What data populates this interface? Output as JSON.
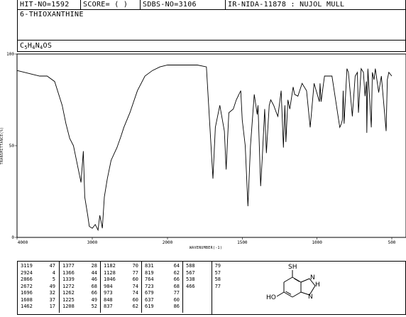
{
  "header": {
    "hit_no": "HIT-NO=1592",
    "score": "SCORE=  (   )",
    "sdbs_no": "SDBS-NO=3106",
    "ir_info": "IR-NIDA-11878 : NUJOL MULL"
  },
  "compound_name": "6-THIOXANTHINE",
  "formula": {
    "c": "C",
    "c_n": "5",
    "h": "H",
    "h_n": "4",
    "n": "N",
    "n_n": "4",
    "rest": "OS"
  },
  "chart_data": {
    "type": "line",
    "title": "",
    "xlabel": "WAVENUMBER(-1)",
    "ylabel": "TRANSMITTANCE(%)",
    "x_range": [
      4000,
      500
    ],
    "y_range": [
      0,
      100
    ],
    "x_ticks": [
      {
        "value": 4000,
        "label": "4000"
      },
      {
        "value": 3000,
        "label": "3000"
      },
      {
        "value": 2000,
        "label": "2000"
      },
      {
        "value": 1500,
        "label": "1500"
      },
      {
        "value": 1000,
        "label": "1000"
      },
      {
        "value": 500,
        "label": "500"
      }
    ],
    "y_ticks": [
      {
        "value": 0,
        "label": "0"
      },
      {
        "value": 50,
        "label": "50"
      },
      {
        "value": 100,
        "label": "100"
      }
    ],
    "x_axis_note": "x axis changes scale at 2000",
    "spectrum": [
      [
        4000,
        91
      ],
      [
        3900,
        90
      ],
      [
        3800,
        89
      ],
      [
        3700,
        88
      ],
      [
        3600,
        88
      ],
      [
        3500,
        85
      ],
      [
        3400,
        72
      ],
      [
        3350,
        62
      ],
      [
        3300,
        54
      ],
      [
        3250,
        50
      ],
      [
        3200,
        40
      ],
      [
        3150,
        30
      ],
      [
        3119,
        47
      ],
      [
        3100,
        22
      ],
      [
        3060,
        12
      ],
      [
        3040,
        6
      ],
      [
        3000,
        5
      ],
      [
        2960,
        7
      ],
      [
        2924,
        4
      ],
      [
        2900,
        12
      ],
      [
        2866,
        5
      ],
      [
        2840,
        22
      ],
      [
        2800,
        32
      ],
      [
        2750,
        42
      ],
      [
        2672,
        49
      ],
      [
        2620,
        55
      ],
      [
        2580,
        60
      ],
      [
        2500,
        68
      ],
      [
        2400,
        80
      ],
      [
        2300,
        88
      ],
      [
        2200,
        91
      ],
      [
        2100,
        93
      ],
      [
        2000,
        94
      ],
      [
        1900,
        94
      ],
      [
        1800,
        94
      ],
      [
        1740,
        93
      ],
      [
        1696,
        32
      ],
      [
        1680,
        60
      ],
      [
        1650,
        72
      ],
      [
        1620,
        58
      ],
      [
        1608,
        37
      ],
      [
        1590,
        68
      ],
      [
        1560,
        70
      ],
      [
        1540,
        75
      ],
      [
        1510,
        80
      ],
      [
        1500,
        64
      ],
      [
        1480,
        50
      ],
      [
        1462,
        17
      ],
      [
        1445,
        50
      ],
      [
        1420,
        78
      ],
      [
        1400,
        67
      ],
      [
        1395,
        72
      ],
      [
        1377,
        28
      ],
      [
        1366,
        44
      ],
      [
        1350,
        70
      ],
      [
        1339,
        46
      ],
      [
        1320,
        72
      ],
      [
        1310,
        75
      ],
      [
        1290,
        72
      ],
      [
        1272,
        68
      ],
      [
        1262,
        66
      ],
      [
        1240,
        80
      ],
      [
        1225,
        49
      ],
      [
        1215,
        72
      ],
      [
        1208,
        52
      ],
      [
        1195,
        75
      ],
      [
        1182,
        70
      ],
      [
        1160,
        82
      ],
      [
        1150,
        78
      ],
      [
        1128,
        77
      ],
      [
        1100,
        84
      ],
      [
        1070,
        80
      ],
      [
        1046,
        60
      ],
      [
        1020,
        84
      ],
      [
        984,
        74
      ],
      [
        980,
        84
      ],
      [
        973,
        74
      ],
      [
        950,
        88
      ],
      [
        900,
        88
      ],
      [
        848,
        60
      ],
      [
        837,
        62
      ],
      [
        831,
        64
      ],
      [
        825,
        80
      ],
      [
        819,
        62
      ],
      [
        800,
        92
      ],
      [
        790,
        90
      ],
      [
        764,
        66
      ],
      [
        745,
        88
      ],
      [
        730,
        90
      ],
      [
        723,
        68
      ],
      [
        705,
        92
      ],
      [
        690,
        90
      ],
      [
        679,
        77
      ],
      [
        670,
        85
      ],
      [
        667,
        57
      ],
      [
        660,
        92
      ],
      [
        637,
        60
      ],
      [
        630,
        90
      ],
      [
        619,
        86
      ],
      [
        610,
        92
      ],
      [
        588,
        79
      ],
      [
        570,
        88
      ],
      [
        538,
        58
      ],
      [
        530,
        86
      ],
      [
        520,
        90
      ],
      [
        500,
        88
      ]
    ]
  },
  "peak_table": [
    [
      [
        "3119",
        "47"
      ],
      [
        "2924",
        "4"
      ],
      [
        "2866",
        "5"
      ],
      [
        "2672",
        "49"
      ],
      [
        "1696",
        "32"
      ],
      [
        "1608",
        "37"
      ],
      [
        "1462",
        "17"
      ]
    ],
    [
      [
        "1377",
        "28"
      ],
      [
        "1366",
        "44"
      ],
      [
        "1339",
        "46"
      ],
      [
        "1272",
        "68"
      ],
      [
        "1262",
        "66"
      ],
      [
        "1225",
        "49"
      ],
      [
        "1208",
        "52"
      ]
    ],
    [
      [
        "1182",
        "70"
      ],
      [
        "1128",
        "77"
      ],
      [
        "1046",
        "60"
      ],
      [
        "984",
        "74"
      ],
      [
        "973",
        "74"
      ],
      [
        "848",
        "60"
      ],
      [
        "837",
        "62"
      ]
    ],
    [
      [
        "831",
        "64"
      ],
      [
        "819",
        "62"
      ],
      [
        "764",
        "66"
      ],
      [
        "723",
        "68"
      ],
      [
        "679",
        "77"
      ],
      [
        "637",
        "60"
      ],
      [
        "619",
        "86"
      ]
    ],
    [
      [
        "588",
        "79"
      ],
      [
        "567",
        "57"
      ],
      [
        "538",
        "58"
      ],
      [
        "466",
        "77"
      ]
    ]
  ],
  "structure": {
    "sh_label": "SH",
    "ho_label": "HO",
    "n1": "N",
    "n3": "N",
    "n7": "N",
    "n9": "N",
    "nh": "H",
    "stroke": "#000000"
  }
}
